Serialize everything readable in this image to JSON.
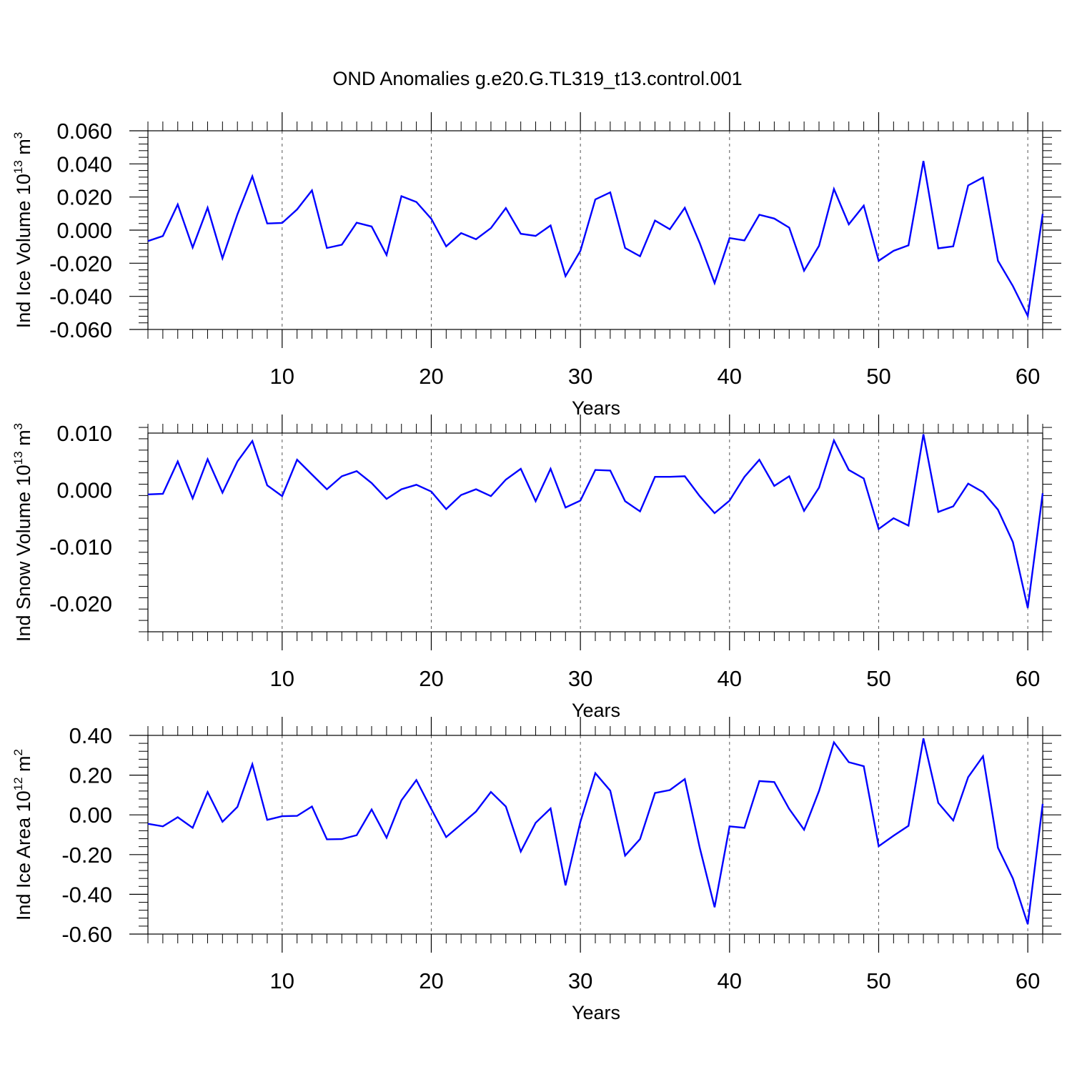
{
  "figure": {
    "title": "OND Anomalies g.e20.G.TL319_t13.control.001",
    "line_color": "#0000ff"
  },
  "chart_data": [
    {
      "type": "line",
      "xlabel": "Years",
      "ylabel": {
        "main": "Ind Ice Volume 10",
        "exponent": "13",
        "unit": " m",
        "unit_exponent": "3"
      },
      "xlim": [
        1,
        61
      ],
      "ylim": [
        -0.06,
        0.06
      ],
      "xticks": [
        10,
        20,
        30,
        40,
        50,
        60
      ],
      "yticks": [
        "0.060",
        "0.040",
        "0.020",
        "0.000",
        "-0.020",
        "-0.040",
        "-0.060"
      ],
      "ytick_values": [
        0.06,
        0.04,
        0.02,
        0.0,
        -0.02,
        -0.04,
        -0.06
      ],
      "grid": "x-dashed",
      "series": [
        {
          "values": [
            -0.0066,
            -0.0036,
            0.0155,
            -0.0105,
            0.0135,
            -0.017,
            0.0095,
            0.0325,
            0.004,
            0.0043,
            0.0125,
            0.024,
            -0.0108,
            -0.0088,
            0.0045,
            0.0022,
            -0.015,
            0.0205,
            0.017,
            0.0068,
            -0.0098,
            -0.0018,
            -0.0055,
            0.0012,
            0.0133,
            -0.0022,
            -0.0035,
            0.0028,
            -0.0278,
            -0.0125,
            0.0185,
            0.0228,
            -0.0108,
            -0.0158,
            0.0058,
            0.0005,
            0.0135,
            -0.0078,
            -0.032,
            -0.0048,
            -0.0062,
            0.0093,
            0.007,
            0.0015,
            -0.0245,
            -0.0095,
            0.0248,
            0.0035,
            0.0148,
            -0.0185,
            -0.0125,
            -0.0092,
            0.0418,
            -0.011,
            -0.0098,
            0.027,
            0.0318,
            -0.0185,
            -0.0338,
            -0.0518,
            0.0098
          ]
        }
      ]
    },
    {
      "type": "line",
      "xlabel": "Years",
      "ylabel": {
        "main": "Ind Snow Volume 10",
        "exponent": "13",
        "unit": " m",
        "unit_exponent": "3"
      },
      "xlim": [
        1,
        61
      ],
      "ylim": [
        -0.025,
        0.01
      ],
      "xticks": [
        10,
        20,
        30,
        40,
        50,
        60
      ],
      "yticks": [
        "0.010",
        "0.000",
        "-0.010",
        "-0.020"
      ],
      "ytick_values": [
        0.01,
        0.0,
        -0.01,
        -0.02
      ],
      "grid": "x-dashed",
      "series": [
        {
          "values": [
            -0.0008,
            -0.0007,
            0.005,
            -0.0015,
            0.0054,
            -0.0005,
            0.005,
            0.0086,
            0.0008,
            -0.0011,
            0.0053,
            0.0027,
            0.0001,
            0.0024,
            0.0033,
            0.0012,
            -0.0016,
            0.0001,
            0.0009,
            -0.0003,
            -0.0034,
            -0.0009,
            0.0001,
            -0.0011,
            0.0018,
            0.0037,
            -0.002,
            0.0037,
            -0.0031,
            -0.0019,
            0.0035,
            0.0034,
            -0.002,
            -0.0038,
            0.0023,
            0.0023,
            0.0024,
            -0.0011,
            -0.0041,
            -0.0019,
            0.0023,
            0.0053,
            0.0007,
            0.0024,
            -0.0037,
            0.0004,
            0.0087,
            0.0035,
            0.002,
            -0.0069,
            -0.005,
            -0.0063,
            0.0098,
            -0.0039,
            -0.0029,
            0.0011,
            -0.0004,
            -0.0035,
            -0.0092,
            -0.0208,
            -0.0006
          ]
        }
      ]
    },
    {
      "type": "line",
      "xlabel": "Years",
      "ylabel": {
        "main": "Ind Ice Area 10",
        "exponent": "12",
        "unit": " m",
        "unit_exponent": "2"
      },
      "xlim": [
        1,
        61
      ],
      "ylim": [
        -0.6,
        0.4
      ],
      "xticks": [
        10,
        20,
        30,
        40,
        50,
        60
      ],
      "yticks": [
        "0.40",
        "0.20",
        "0.00",
        "-0.20",
        "-0.40",
        "-0.60"
      ],
      "ytick_values": [
        0.4,
        0.2,
        0.0,
        -0.2,
        -0.4,
        -0.6
      ],
      "grid": "x-dashed",
      "series": [
        {
          "values": [
            -0.045,
            -0.058,
            -0.012,
            -0.065,
            0.115,
            -0.035,
            0.04,
            0.255,
            -0.025,
            -0.007,
            -0.005,
            0.042,
            -0.123,
            -0.122,
            -0.102,
            0.027,
            -0.115,
            0.073,
            0.175,
            0.03,
            -0.112,
            -0.048,
            0.017,
            0.115,
            0.042,
            -0.185,
            -0.04,
            0.032,
            -0.355,
            -0.035,
            0.21,
            0.122,
            -0.205,
            -0.122,
            0.11,
            0.125,
            0.18,
            -0.165,
            -0.465,
            -0.058,
            -0.065,
            0.17,
            0.165,
            0.03,
            -0.075,
            0.12,
            0.365,
            0.265,
            0.245,
            -0.158,
            -0.105,
            -0.055,
            0.385,
            0.06,
            -0.028,
            0.19,
            0.295,
            -0.165,
            -0.32,
            -0.55,
            0.055
          ]
        }
      ]
    }
  ]
}
